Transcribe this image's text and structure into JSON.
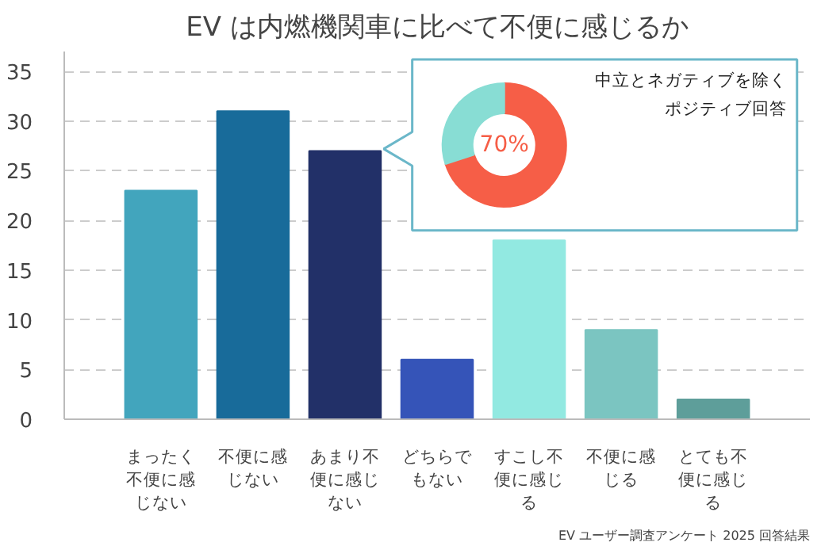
{
  "chart_data": [
    {
      "type": "bar",
      "title": "EV は内燃機関車に比べて不便に感じるか",
      "categories": [
        "まったく不便に感じない",
        "不便に感じない",
        "あまり不便に感じない",
        "どちらでもない",
        "すこし不便に感じる",
        "不便に感じる",
        "とても不便に感じる"
      ],
      "values": [
        23,
        31,
        27,
        6,
        18,
        9,
        2
      ],
      "colors": [
        "#42a5bd",
        "#186b9a",
        "#223068",
        "#3554b8",
        "#92e9e1",
        "#7bc5c1",
        "#5e9e9a"
      ],
      "ylim": [
        0,
        37
      ],
      "yticks": [
        0,
        5,
        10,
        15,
        20,
        25,
        30,
        35
      ],
      "grid": "y",
      "annotations": [
        "EV ユーザー調査アンケート 2025 回答結果"
      ]
    },
    {
      "type": "donut",
      "categories": [
        null,
        null
      ],
      "values": [
        70,
        30
      ],
      "colors": [
        "#f65e47",
        "#88ddd4"
      ],
      "value_labels": [
        "70%",
        null
      ],
      "annotations": [
        "中立とネガティブを除くポジティブ回答"
      ]
    }
  ]
}
